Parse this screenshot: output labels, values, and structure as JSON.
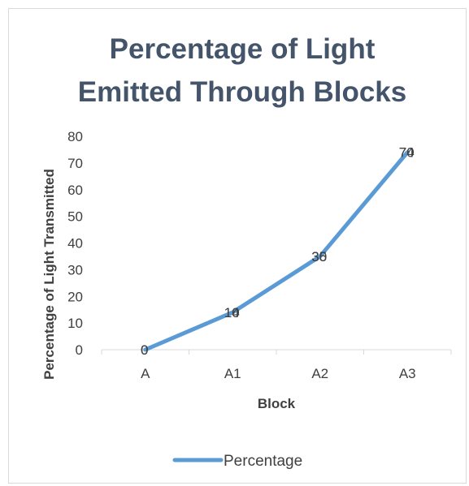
{
  "chart_data": {
    "type": "line",
    "title_lines": [
      "Percentage of Light",
      "Emitted Through Blocks"
    ],
    "xlabel": "Block",
    "ylabel": "Percentage of Light Transmitted",
    "categories": [
      "A",
      "A1",
      "A2",
      "A3"
    ],
    "series": [
      {
        "name": "Percentage",
        "values": [
          0,
          14,
          35,
          74
        ],
        "overlap_labels": [
          "0",
          "10",
          "30",
          "70"
        ],
        "color": "#5b9bd5"
      }
    ],
    "ylim": [
      0,
      80
    ],
    "yticks": [
      0,
      10,
      20,
      30,
      40,
      50,
      60,
      70,
      80
    ],
    "grid": false,
    "legend": "bottom"
  }
}
